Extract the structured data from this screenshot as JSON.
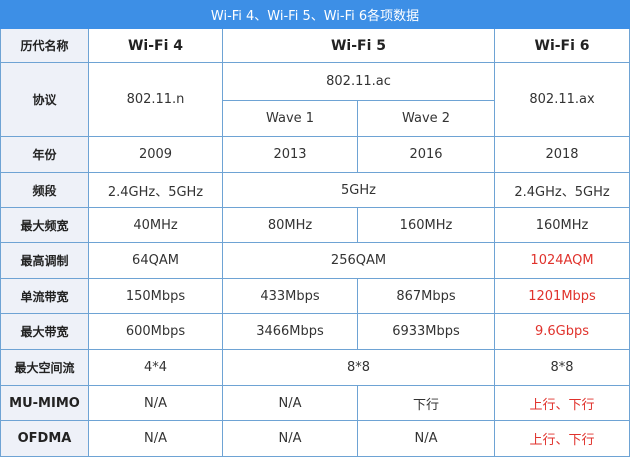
{
  "title": "Wi-Fi 4、Wi-Fi 5、Wi-Fi 6各项数据",
  "header": {
    "label": "历代名称",
    "wifi4": "Wi-Fi 4",
    "wifi5": "Wi-Fi 5",
    "wifi6": "Wi-Fi 6"
  },
  "protocol": {
    "label": "协议",
    "wifi4": "802.11.n",
    "wifi5": "802.11.ac",
    "wave1": "Wave 1",
    "wave2": "Wave 2",
    "wifi6": "802.11.ax"
  },
  "year": {
    "label": "年份",
    "wifi4": "2009",
    "wave1": "2013",
    "wave2": "2016",
    "wifi6": "2018"
  },
  "band": {
    "label": "频段",
    "wifi4": "2.4GHz、5GHz",
    "wifi5": "5GHz",
    "wifi6": "2.4GHz、5GHz"
  },
  "bandwidth": {
    "label": "最大频宽",
    "wifi4": "40MHz",
    "wave1": "80MHz",
    "wave2": "160MHz",
    "wifi6": "160MHz"
  },
  "modulation": {
    "label": "最高调制",
    "wifi4": "64QAM",
    "wifi5": "256QAM",
    "wifi6": "1024AQM"
  },
  "single_stream": {
    "label": "单流带宽",
    "wifi4": "150Mbps",
    "wave1": "433Mbps",
    "wave2": "867Mbps",
    "wifi6": "1201Mbps"
  },
  "max_rate": {
    "label": "最大带宽",
    "wifi4": "600Mbps",
    "wave1": "3466Mbps",
    "wave2": "6933Mbps",
    "wifi6": "9.6Gbps"
  },
  "streams": {
    "label": "最大空间流",
    "wifi4": "4*4",
    "wifi5": "8*8",
    "wifi6": "8*8"
  },
  "mumimo": {
    "label": "MU-MIMO",
    "wifi4": "N/A",
    "wave1": "N/A",
    "wave2": "下行",
    "wifi6": "上行、下行"
  },
  "ofdma": {
    "label": "OFDMA",
    "wifi4": "N/A",
    "wave1": "N/A",
    "wave2": "N/A",
    "wifi6": "上行、下行"
  },
  "colors": {
    "title_bg": "#3d8fe6",
    "highlight": "#e0322c",
    "label_bg": "#eef1f8"
  }
}
